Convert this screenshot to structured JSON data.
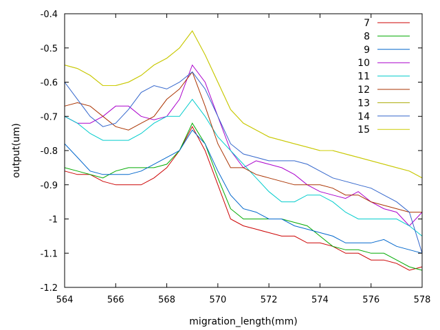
{
  "chart_data": {
    "type": "line",
    "xlabel": "migration_length(mm)",
    "ylabel": "output(um)",
    "xlim": [
      564,
      578
    ],
    "ylim": [
      -1.2,
      -0.4
    ],
    "x_ticks": [
      564,
      566,
      568,
      570,
      572,
      574,
      576,
      578
    ],
    "y_ticks": [
      -0.4,
      -0.5,
      -0.6,
      -0.7,
      -0.8,
      -0.9,
      -1,
      -1.1,
      -1.2
    ],
    "x_tick_labels": [
      "564",
      "566",
      "568",
      "570",
      "572",
      "574",
      "576",
      "578"
    ],
    "y_tick_labels": [
      "-0.4",
      "-0.5",
      "-0.6",
      "-0.7",
      "-0.8",
      "-0.9",
      "-1",
      "-1.1",
      "-1.2"
    ],
    "grid": false,
    "legend_position": "top-right",
    "series": [
      {
        "name": "7",
        "color": "#cc0000",
        "x": [
          564,
          564.5,
          565,
          565.5,
          566,
          566.5,
          567,
          567.5,
          568,
          568.5,
          569,
          569.5,
          570,
          570.5,
          571,
          571.5,
          572,
          572.5,
          573,
          573.5,
          574,
          574.5,
          575,
          575.5,
          576,
          576.5,
          577,
          577.5,
          578
        ],
        "y": [
          -0.86,
          -0.87,
          -0.87,
          -0.89,
          -0.9,
          -0.9,
          -0.9,
          -0.88,
          -0.85,
          -0.8,
          -0.73,
          -0.8,
          -0.9,
          -1.0,
          -1.02,
          -1.03,
          -1.04,
          -1.05,
          -1.05,
          -1.07,
          -1.07,
          -1.08,
          -1.1,
          -1.1,
          -1.12,
          -1.12,
          -1.13,
          -1.15,
          -1.14
        ]
      },
      {
        "name": "8",
        "color": "#00aa00",
        "x": [
          564,
          564.5,
          565,
          565.5,
          566,
          566.5,
          567,
          567.5,
          568,
          568.5,
          569,
          569.5,
          570,
          570.5,
          571,
          571.5,
          572,
          572.5,
          573,
          573.5,
          574,
          574.5,
          575,
          575.5,
          576,
          576.5,
          577,
          577.5,
          578
        ],
        "y": [
          -0.85,
          -0.86,
          -0.87,
          -0.88,
          -0.86,
          -0.85,
          -0.85,
          -0.85,
          -0.84,
          -0.8,
          -0.72,
          -0.78,
          -0.88,
          -0.97,
          -1.0,
          -1.0,
          -1.0,
          -1.0,
          -1.01,
          -1.02,
          -1.05,
          -1.08,
          -1.09,
          -1.09,
          -1.1,
          -1.1,
          -1.12,
          -1.14,
          -1.15
        ]
      },
      {
        "name": "9",
        "color": "#0066cc",
        "x": [
          564,
          564.5,
          565,
          565.5,
          566,
          566.5,
          567,
          567.5,
          568,
          568.5,
          569,
          569.5,
          570,
          570.5,
          571,
          571.5,
          572,
          572.5,
          573,
          573.5,
          574,
          574.5,
          575,
          575.5,
          576,
          576.5,
          577,
          577.5,
          578
        ],
        "y": [
          -0.78,
          -0.82,
          -0.86,
          -0.87,
          -0.87,
          -0.87,
          -0.86,
          -0.84,
          -0.82,
          -0.8,
          -0.74,
          -0.78,
          -0.86,
          -0.93,
          -0.97,
          -0.98,
          -1.0,
          -1.0,
          -1.02,
          -1.03,
          -1.04,
          -1.05,
          -1.07,
          -1.07,
          -1.07,
          -1.06,
          -1.08,
          -1.09,
          -1.1
        ]
      },
      {
        "name": "10",
        "color": "#aa00cc",
        "x": [
          564,
          564.5,
          565,
          565.5,
          566,
          566.5,
          567,
          567.5,
          568,
          568.5,
          569,
          569.5,
          570,
          570.5,
          571,
          571.5,
          572,
          572.5,
          573,
          573.5,
          574,
          574.5,
          575,
          575.5,
          576,
          576.5,
          577,
          577.5,
          578
        ],
        "y": [
          -0.7,
          -0.72,
          -0.72,
          -0.7,
          -0.67,
          -0.67,
          -0.7,
          -0.71,
          -0.7,
          -0.65,
          -0.55,
          -0.6,
          -0.7,
          -0.8,
          -0.85,
          -0.83,
          -0.84,
          -0.85,
          -0.87,
          -0.9,
          -0.92,
          -0.93,
          -0.94,
          -0.92,
          -0.95,
          -0.97,
          -0.98,
          -1.02,
          -0.98
        ]
      },
      {
        "name": "11",
        "color": "#00cccc",
        "x": [
          564,
          564.5,
          565,
          565.5,
          566,
          566.5,
          567,
          567.5,
          568,
          568.5,
          569,
          569.5,
          570,
          570.5,
          571,
          571.5,
          572,
          572.5,
          573,
          573.5,
          574,
          574.5,
          575,
          575.5,
          576,
          576.5,
          577,
          577.5,
          578
        ],
        "y": [
          -0.7,
          -0.72,
          -0.75,
          -0.77,
          -0.77,
          -0.77,
          -0.75,
          -0.72,
          -0.7,
          -0.7,
          -0.65,
          -0.7,
          -0.76,
          -0.8,
          -0.84,
          -0.88,
          -0.92,
          -0.95,
          -0.95,
          -0.93,
          -0.93,
          -0.95,
          -0.98,
          -1.0,
          -1.0,
          -1.0,
          -1.0,
          -1.02,
          -1.05
        ]
      },
      {
        "name": "12",
        "color": "#aa3300",
        "x": [
          564,
          564.5,
          565,
          565.5,
          566,
          566.5,
          567,
          567.5,
          568,
          568.5,
          569,
          569.5,
          570,
          570.5,
          571,
          571.5,
          572,
          572.5,
          573,
          573.5,
          574,
          574.5,
          575,
          575.5,
          576,
          576.5,
          577,
          577.5,
          578
        ],
        "y": [
          -0.67,
          -0.66,
          -0.67,
          -0.7,
          -0.73,
          -0.74,
          -0.72,
          -0.7,
          -0.65,
          -0.62,
          -0.57,
          -0.67,
          -0.78,
          -0.85,
          -0.85,
          -0.87,
          -0.88,
          -0.89,
          -0.9,
          -0.9,
          -0.9,
          -0.91,
          -0.93,
          -0.93,
          -0.95,
          -0.96,
          -0.97,
          -0.98,
          -0.98
        ]
      },
      {
        "name": "13",
        "color": "#aaaa00",
        "x": [
          564,
          564.5,
          565,
          565.5,
          566,
          566.5,
          567,
          567.5,
          568,
          568.5,
          569,
          569.5,
          570,
          570.5,
          571,
          571.5,
          572,
          572.5,
          573,
          573.5,
          574,
          574.5,
          575,
          575.5,
          576,
          576.5,
          577,
          577.5,
          578
        ],
        "y": [
          -0.55,
          -0.56,
          -0.58,
          -0.61,
          -0.61,
          -0.6,
          -0.58,
          -0.55,
          -0.53,
          -0.5,
          -0.45,
          -0.52,
          -0.6,
          -0.68,
          -0.72,
          -0.74,
          -0.76,
          -0.77,
          -0.78,
          -0.79,
          -0.8,
          -0.8,
          -0.81,
          -0.82,
          -0.83,
          -0.84,
          -0.85,
          -0.86,
          -0.88
        ]
      },
      {
        "name": "14",
        "color": "#3366cc",
        "x": [
          564,
          564.5,
          565,
          565.5,
          566,
          566.5,
          567,
          567.5,
          568,
          568.5,
          569,
          569.5,
          570,
          570.5,
          571,
          571.5,
          572,
          572.5,
          573,
          573.5,
          574,
          574.5,
          575,
          575.5,
          576,
          576.5,
          577,
          577.5,
          578
        ],
        "y": [
          -0.6,
          -0.65,
          -0.7,
          -0.73,
          -0.72,
          -0.68,
          -0.63,
          -0.61,
          -0.62,
          -0.6,
          -0.57,
          -0.62,
          -0.7,
          -0.78,
          -0.81,
          -0.82,
          -0.83,
          -0.83,
          -0.83,
          -0.84,
          -0.86,
          -0.88,
          -0.89,
          -0.9,
          -0.91,
          -0.93,
          -0.95,
          -0.98,
          -1.1
        ]
      },
      {
        "name": "15",
        "color": "#cccc00",
        "x": [
          564,
          564.5,
          565,
          565.5,
          566,
          566.5,
          567,
          567.5,
          568,
          568.5,
          569,
          569.5,
          570,
          570.5,
          571,
          571.5,
          572,
          572.5,
          573,
          573.5,
          574,
          574.5,
          575,
          575.5,
          576,
          576.5,
          577,
          577.5,
          578
        ],
        "y": [
          -0.55,
          -0.56,
          -0.58,
          -0.61,
          -0.61,
          -0.6,
          -0.58,
          -0.55,
          -0.53,
          -0.5,
          -0.45,
          -0.52,
          -0.6,
          -0.68,
          -0.72,
          -0.74,
          -0.76,
          -0.77,
          -0.78,
          -0.79,
          -0.8,
          -0.8,
          -0.81,
          -0.82,
          -0.83,
          -0.84,
          -0.85,
          -0.86,
          -0.88
        ]
      }
    ]
  }
}
